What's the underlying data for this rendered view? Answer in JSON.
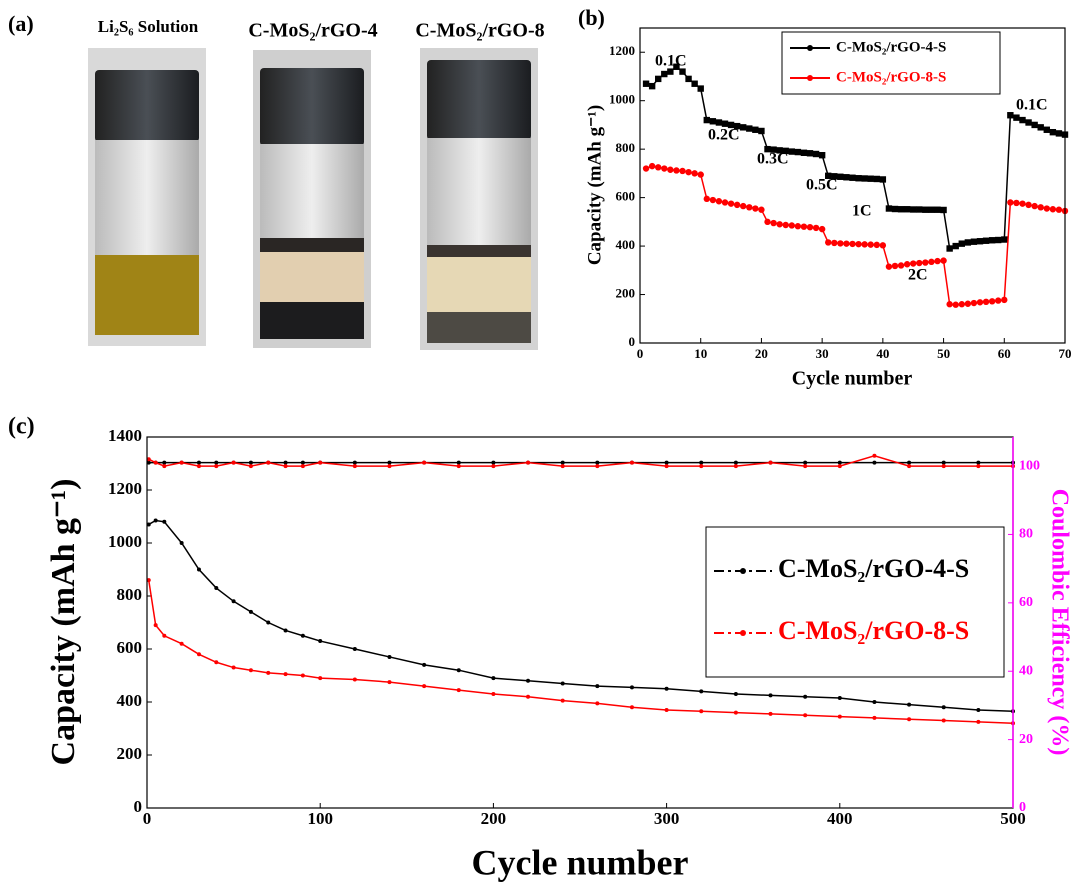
{
  "photo": {
    "label": "(a)",
    "captions": [
      "Li₂S₆ Solution",
      "C-MoS₂/rGO-4",
      "C-MoS₂/rGO-8"
    ]
  },
  "chart_data": [
    {
      "type": "line",
      "label": "(b)",
      "x_label": "Cycle number",
      "y_label": "Capacity (mAh g⁻¹)",
      "x": [
        1,
        2,
        3,
        4,
        5,
        6,
        7,
        8,
        9,
        10,
        11,
        12,
        13,
        14,
        15,
        16,
        17,
        18,
        19,
        20,
        21,
        22,
        23,
        24,
        25,
        26,
        27,
        28,
        29,
        30,
        31,
        32,
        33,
        34,
        35,
        36,
        37,
        38,
        39,
        40,
        41,
        42,
        43,
        44,
        45,
        46,
        47,
        48,
        49,
        50,
        51,
        52,
        53,
        54,
        55,
        56,
        57,
        58,
        59,
        60,
        61,
        62,
        63,
        64,
        65,
        66,
        67,
        68,
        69,
        70
      ],
      "xlim": [
        0,
        70
      ],
      "xticks": [
        0,
        10,
        20,
        30,
        40,
        50,
        60,
        70
      ],
      "ylim": [
        0,
        1300
      ],
      "yticks": [
        0,
        200,
        400,
        600,
        800,
        1000,
        1200
      ],
      "annotations": [
        "0.1C",
        "0.2C",
        "0.3C",
        "0.5C",
        "1C",
        "2C",
        "0.1C"
      ],
      "series": [
        {
          "name": "C-MoS₂/rGO-4-S",
          "color": "#000000",
          "marker": "square",
          "values": [
            1070,
            1060,
            1090,
            1110,
            1120,
            1140,
            1120,
            1090,
            1070,
            1050,
            920,
            915,
            910,
            905,
            900,
            895,
            890,
            885,
            880,
            875,
            800,
            798,
            795,
            793,
            790,
            788,
            785,
            783,
            780,
            775,
            690,
            688,
            686,
            684,
            682,
            680,
            679,
            678,
            677,
            675,
            555,
            553,
            552,
            552,
            551,
            551,
            550,
            550,
            550,
            549,
            390,
            400,
            410,
            415,
            418,
            420,
            422,
            424,
            425,
            427,
            940,
            930,
            920,
            910,
            900,
            890,
            880,
            870,
            865,
            860
          ]
        },
        {
          "name": "C-MoS₂/rGO-8-S",
          "color": "#ff0000",
          "marker": "circle",
          "values": [
            720,
            730,
            725,
            720,
            715,
            712,
            710,
            705,
            700,
            695,
            595,
            590,
            585,
            580,
            575,
            570,
            565,
            560,
            555,
            550,
            500,
            495,
            490,
            487,
            485,
            482,
            480,
            478,
            475,
            470,
            415,
            413,
            411,
            410,
            409,
            408,
            407,
            406,
            405,
            403,
            315,
            318,
            320,
            325,
            328,
            330,
            332,
            335,
            338,
            340,
            160,
            158,
            160,
            162,
            165,
            168,
            170,
            172,
            175,
            178,
            580,
            578,
            575,
            570,
            565,
            560,
            555,
            552,
            550,
            545
          ]
        }
      ]
    },
    {
      "type": "line",
      "label": "(c)",
      "x_label": "Cycle number",
      "y_label": "Capacity (mAh g⁻¹)",
      "y2_label": "Coulombic Efficiency (%)",
      "x": [
        1,
        5,
        10,
        20,
        30,
        40,
        50,
        60,
        70,
        80,
        90,
        100,
        120,
        140,
        160,
        180,
        200,
        220,
        240,
        260,
        280,
        300,
        320,
        340,
        360,
        380,
        400,
        420,
        440,
        460,
        480,
        500
      ],
      "xlim": [
        0,
        500
      ],
      "xticks": [
        0,
        100,
        200,
        300,
        400,
        500
      ],
      "ylim": [
        0,
        1400
      ],
      "yticks": [
        0,
        200,
        400,
        600,
        800,
        1000,
        1200,
        1400
      ],
      "y2lim": [
        0,
        108.5
      ],
      "y2ticks": [
        0,
        20,
        40,
        60,
        80,
        100
      ],
      "y2_color": "#ff00ff",
      "series": [
        {
          "name": "C-MoS₂/rGO-4-S",
          "color": "#000000",
          "values": [
            1070,
            1085,
            1080,
            1000,
            900,
            830,
            780,
            740,
            700,
            670,
            650,
            630,
            600,
            570,
            540,
            520,
            490,
            480,
            470,
            460,
            455,
            450,
            440,
            430,
            425,
            420,
            415,
            400,
            390,
            380,
            370,
            365
          ],
          "efficiency": [
            101,
            101,
            101,
            101,
            101,
            101,
            101,
            101,
            101,
            101,
            101,
            101,
            101,
            101,
            101,
            101,
            101,
            101,
            101,
            101,
            101,
            101,
            101,
            101,
            101,
            101,
            101,
            101,
            101,
            101,
            101,
            101
          ]
        },
        {
          "name": "C-MoS₂/rGO-8-S",
          "color": "#ff0000",
          "values": [
            860,
            690,
            650,
            620,
            580,
            550,
            530,
            520,
            510,
            505,
            500,
            490,
            485,
            475,
            460,
            445,
            430,
            420,
            405,
            395,
            380,
            370,
            365,
            360,
            355,
            350,
            345,
            340,
            335,
            330,
            325,
            320
          ],
          "efficiency": [
            102,
            101,
            100,
            101,
            100,
            100,
            101,
            100,
            101,
            100,
            100,
            101,
            100,
            100,
            101,
            100,
            100,
            101,
            100,
            100,
            101,
            100,
            100,
            100,
            101,
            100,
            100,
            103,
            100,
            100,
            100,
            100
          ]
        }
      ]
    }
  ]
}
